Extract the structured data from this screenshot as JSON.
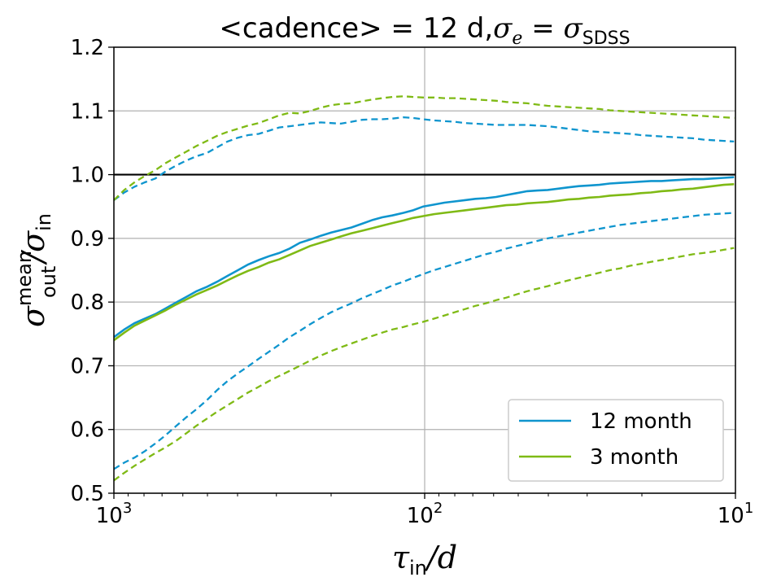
{
  "chart_data": {
    "type": "line",
    "title": {
      "part1": "<cadence> = 12 d,",
      "sigma": "σ",
      "sub_e": "e",
      "eq": " = ",
      "sigma2": "σ",
      "sub_sdss": "SDSS"
    },
    "xlabel": {
      "main": "τ",
      "sub": "in",
      "rest": "/d"
    },
    "ylabel": {
      "main": "σ",
      "sup": "mean",
      "sub": "out",
      "slash": "/",
      "main2": "σ",
      "sub2": "in"
    },
    "x_scale": "log",
    "x_reversed": true,
    "xlim": [
      1000,
      10
    ],
    "ylim": [
      0.5,
      1.2
    ],
    "x_ticks": [
      {
        "value": 1000,
        "base": "10",
        "exp": "3"
      },
      {
        "value": 100,
        "base": "10",
        "exp": "2"
      },
      {
        "value": 10,
        "base": "10",
        "exp": "1"
      }
    ],
    "y_ticks": [
      "0.5",
      "0.6",
      "0.7",
      "0.8",
      "0.9",
      "1.0",
      "1.1",
      "1.2"
    ],
    "grid": true,
    "reference_line": 1.0,
    "legend_position": "bottom-right",
    "x": [
      1000,
      926,
      858,
      795,
      736,
      682,
      632,
      585,
      542,
      502,
      465,
      431,
      399,
      370,
      342,
      317,
      294,
      272,
      252,
      234,
      216,
      200,
      186,
      172,
      159,
      147,
      137,
      127,
      117,
      109,
      101,
      93.3,
      86.4,
      80.1,
      74.2,
      68.7,
      63.6,
      58.9,
      54.6,
      50.6,
      46.8,
      43.4,
      40.2,
      37.2,
      34.5,
      31.9,
      29.6,
      27.4,
      25.4,
      23.5,
      21.8,
      20.2,
      18.7,
      17.3,
      16,
      14.8,
      13.7,
      12.7,
      11.8,
      10.9,
      10.1
    ],
    "series": [
      {
        "name": "12 month",
        "color": "#0F95CE",
        "mean": [
          0.745,
          0.757,
          0.767,
          0.774,
          0.781,
          0.79,
          0.799,
          0.808,
          0.817,
          0.824,
          0.832,
          0.841,
          0.85,
          0.859,
          0.866,
          0.872,
          0.877,
          0.884,
          0.893,
          0.898,
          0.904,
          0.909,
          0.913,
          0.917,
          0.923,
          0.929,
          0.933,
          0.936,
          0.94,
          0.944,
          0.95,
          0.953,
          0.956,
          0.958,
          0.96,
          0.962,
          0.963,
          0.965,
          0.968,
          0.971,
          0.974,
          0.975,
          0.976,
          0.978,
          0.98,
          0.982,
          0.983,
          0.984,
          0.986,
          0.987,
          0.988,
          0.989,
          0.99,
          0.99,
          0.991,
          0.992,
          0.993,
          0.993,
          0.994,
          0.995,
          0.996
        ],
        "upper": [
          0.96,
          0.972,
          0.981,
          0.988,
          0.994,
          1.005,
          1.014,
          1.022,
          1.029,
          1.034,
          1.043,
          1.052,
          1.058,
          1.062,
          1.064,
          1.069,
          1.074,
          1.076,
          1.078,
          1.08,
          1.082,
          1.081,
          1.08,
          1.083,
          1.086,
          1.087,
          1.087,
          1.088,
          1.09,
          1.089,
          1.087,
          1.085,
          1.084,
          1.083,
          1.081,
          1.08,
          1.079,
          1.078,
          1.078,
          1.078,
          1.078,
          1.077,
          1.076,
          1.074,
          1.072,
          1.07,
          1.068,
          1.067,
          1.066,
          1.065,
          1.064,
          1.062,
          1.061,
          1.06,
          1.059,
          1.058,
          1.057,
          1.055,
          1.054,
          1.053,
          1.052
        ],
        "lower": [
          0.538,
          0.548,
          0.556,
          0.566,
          0.578,
          0.591,
          0.605,
          0.619,
          0.632,
          0.646,
          0.662,
          0.676,
          0.688,
          0.699,
          0.711,
          0.722,
          0.733,
          0.745,
          0.755,
          0.765,
          0.775,
          0.784,
          0.791,
          0.798,
          0.806,
          0.813,
          0.819,
          0.826,
          0.832,
          0.838,
          0.844,
          0.85,
          0.855,
          0.86,
          0.865,
          0.87,
          0.875,
          0.879,
          0.884,
          0.888,
          0.892,
          0.896,
          0.9,
          0.903,
          0.906,
          0.909,
          0.912,
          0.915,
          0.918,
          0.921,
          0.923,
          0.925,
          0.927,
          0.929,
          0.931,
          0.933,
          0.935,
          0.937,
          0.938,
          0.939,
          0.94
        ]
      },
      {
        "name": "3 month",
        "color": "#7FBA15",
        "mean": [
          0.74,
          0.752,
          0.763,
          0.771,
          0.779,
          0.787,
          0.796,
          0.804,
          0.812,
          0.819,
          0.826,
          0.834,
          0.842,
          0.849,
          0.855,
          0.862,
          0.867,
          0.874,
          0.881,
          0.888,
          0.893,
          0.898,
          0.903,
          0.908,
          0.912,
          0.916,
          0.92,
          0.924,
          0.928,
          0.932,
          0.935,
          0.938,
          0.94,
          0.942,
          0.944,
          0.946,
          0.948,
          0.95,
          0.952,
          0.953,
          0.955,
          0.956,
          0.957,
          0.959,
          0.961,
          0.962,
          0.964,
          0.965,
          0.967,
          0.968,
          0.969,
          0.971,
          0.972,
          0.974,
          0.975,
          0.977,
          0.978,
          0.98,
          0.982,
          0.984,
          0.985
        ],
        "upper": [
          0.96,
          0.976,
          0.988,
          0.998,
          1.007,
          1.018,
          1.027,
          1.036,
          1.045,
          1.053,
          1.061,
          1.067,
          1.072,
          1.077,
          1.081,
          1.087,
          1.093,
          1.097,
          1.096,
          1.1,
          1.105,
          1.109,
          1.111,
          1.112,
          1.115,
          1.118,
          1.12,
          1.122,
          1.123,
          1.122,
          1.121,
          1.121,
          1.12,
          1.12,
          1.119,
          1.118,
          1.117,
          1.116,
          1.114,
          1.113,
          1.112,
          1.11,
          1.108,
          1.107,
          1.106,
          1.105,
          1.104,
          1.103,
          1.101,
          1.1,
          1.099,
          1.098,
          1.097,
          1.096,
          1.095,
          1.094,
          1.093,
          1.092,
          1.091,
          1.09,
          1.089
        ],
        "lower": [
          0.52,
          0.532,
          0.543,
          0.553,
          0.563,
          0.572,
          0.582,
          0.594,
          0.606,
          0.617,
          0.628,
          0.638,
          0.648,
          0.658,
          0.667,
          0.676,
          0.684,
          0.692,
          0.7,
          0.708,
          0.716,
          0.723,
          0.729,
          0.735,
          0.741,
          0.747,
          0.752,
          0.757,
          0.761,
          0.765,
          0.769,
          0.774,
          0.779,
          0.784,
          0.789,
          0.794,
          0.798,
          0.803,
          0.807,
          0.812,
          0.817,
          0.821,
          0.825,
          0.83,
          0.834,
          0.838,
          0.842,
          0.846,
          0.85,
          0.853,
          0.857,
          0.86,
          0.863,
          0.866,
          0.869,
          0.872,
          0.875,
          0.877,
          0.879,
          0.882,
          0.885
        ]
      }
    ]
  }
}
